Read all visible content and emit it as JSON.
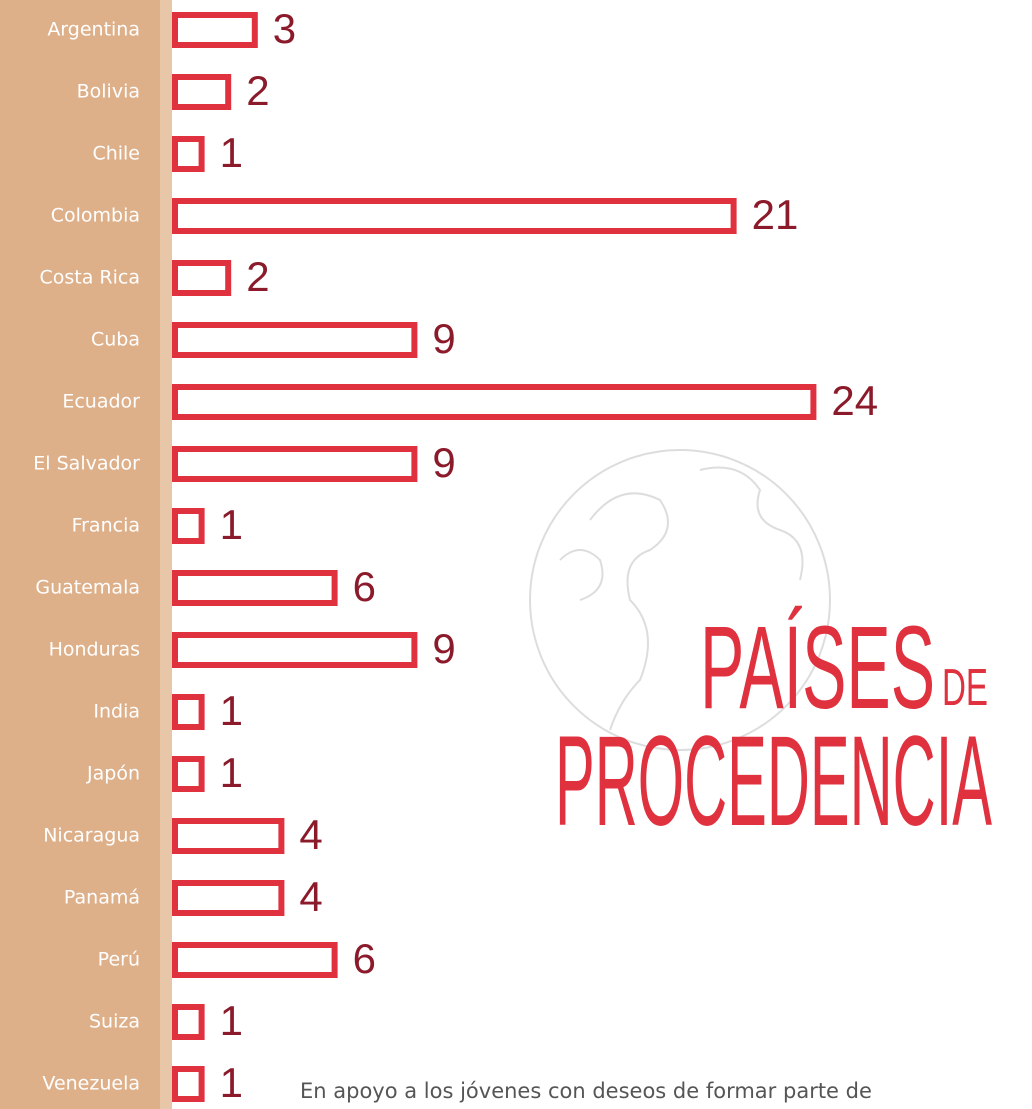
{
  "chart_data": {
    "type": "bar",
    "orientation": "horizontal",
    "title_lines": [
      "PAÍSES",
      "DE",
      "PROCEDENCIA"
    ],
    "categories": [
      "Argentina",
      "Bolivia",
      "Chile",
      "Colombia",
      "Costa Rica",
      "Cuba",
      "Ecuador",
      "El Salvador",
      "Francia",
      "Guatemala",
      "Honduras",
      "India",
      "Japón",
      "Nicaragua",
      "Panamá",
      "Perú",
      "Suiza",
      "Venezuela"
    ],
    "values": [
      3,
      2,
      1,
      21,
      2,
      9,
      24,
      9,
      1,
      6,
      9,
      1,
      1,
      4,
      4,
      6,
      1,
      1
    ],
    "color": "#e0313f"
  },
  "text": "En apoyo a los jóvenes con deseos de formar parte de"
}
